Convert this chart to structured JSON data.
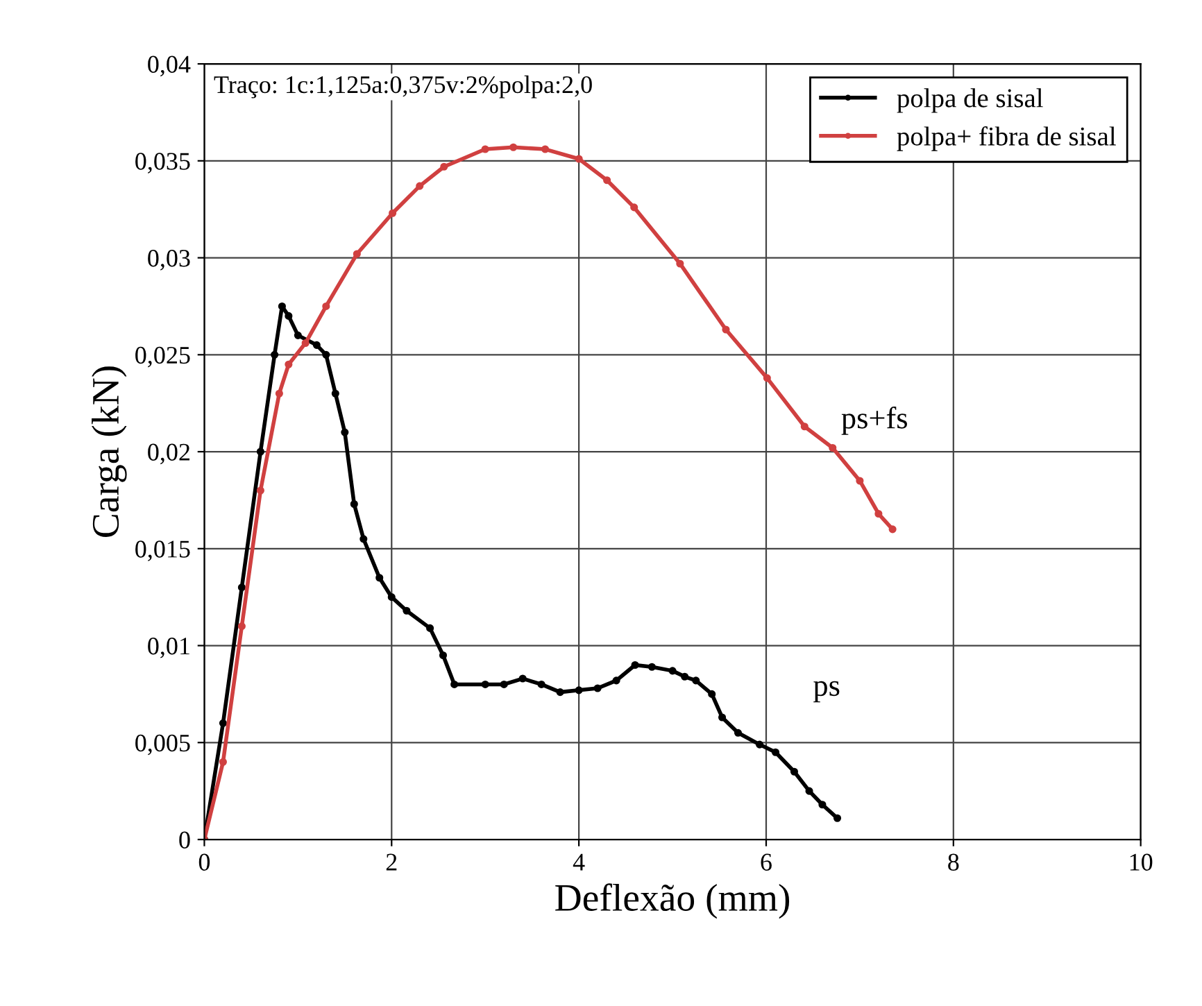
{
  "chart_data": {
    "type": "line",
    "xlabel": "Deflexão (mm)",
    "ylabel": "Carga (kN)",
    "xlim": [
      0,
      10
    ],
    "ylim": [
      0,
      0.04
    ],
    "xticks": [
      0,
      2,
      4,
      6,
      8,
      10
    ],
    "yticks": [
      0,
      {
        "value": 0.005,
        "label": "0,005"
      },
      {
        "value": 0.01,
        "label": "0,01"
      },
      {
        "value": 0.015,
        "label": "0,015"
      },
      {
        "value": 0.02,
        "label": "0,02"
      },
      {
        "value": 0.025,
        "label": "0,025"
      },
      {
        "value": 0.03,
        "label": "0,03"
      },
      {
        "value": 0.035,
        "label": "0,035"
      },
      {
        "value": 0.04,
        "label": "0,04"
      }
    ],
    "grid": true,
    "legend": "top right",
    "marker": "circle",
    "line_style": "solid",
    "series": [
      {
        "name": "polpa de sisal",
        "color": "#000000",
        "x": [
          0,
          0.2,
          0.4,
          0.6,
          0.75,
          0.83,
          0.9,
          1.0,
          1.2,
          1.3,
          1.4,
          1.5,
          1.6,
          1.7,
          1.87,
          2.0,
          2.16,
          2.41,
          2.55,
          2.67,
          3.0,
          3.2,
          3.4,
          3.6,
          3.8,
          4.0,
          4.2,
          4.4,
          4.6,
          4.78,
          5.0,
          5.13,
          5.25,
          5.42,
          5.53,
          5.7,
          5.93,
          6.1,
          6.3,
          6.46,
          6.6,
          6.76
        ],
        "values": [
          0,
          0.006,
          0.013,
          0.02,
          0.025,
          0.0275,
          0.027,
          0.026,
          0.0255,
          0.025,
          0.023,
          0.021,
          0.0173,
          0.0155,
          0.0135,
          0.0125,
          0.0118,
          0.0109,
          0.0095,
          0.008,
          0.008,
          0.008,
          0.0083,
          0.008,
          0.0076,
          0.0077,
          0.0078,
          0.0082,
          0.009,
          0.0089,
          0.0087,
          0.0084,
          0.0082,
          0.0075,
          0.0063,
          0.0055,
          0.0049,
          0.0045,
          0.0035,
          0.0025,
          0.0018,
          0.0011
        ]
      },
      {
        "name": "polpa+ fibra de sisal",
        "color": "#d04040",
        "x": [
          0,
          0.2,
          0.4,
          0.6,
          0.8,
          0.9,
          1.08,
          1.3,
          1.63,
          2.01,
          2.3,
          2.56,
          3.0,
          3.3,
          3.64,
          4.0,
          4.3,
          4.59,
          5.08,
          5.57,
          6.01,
          6.41,
          6.71,
          7.0,
          7.2,
          7.35
        ],
        "values": [
          0,
          0.004,
          0.011,
          0.018,
          0.023,
          0.0245,
          0.0256,
          0.0275,
          0.0302,
          0.0323,
          0.0337,
          0.0347,
          0.0356,
          0.0357,
          0.0356,
          0.0351,
          0.034,
          0.0326,
          0.0297,
          0.0263,
          0.0238,
          0.0213,
          0.0202,
          0.0185,
          0.0168,
          0.016
        ]
      }
    ],
    "annotations": [
      "Traço: 1c:1,125a:0,375v:2%polpa:2,0",
      "ps+fs",
      "ps"
    ]
  }
}
